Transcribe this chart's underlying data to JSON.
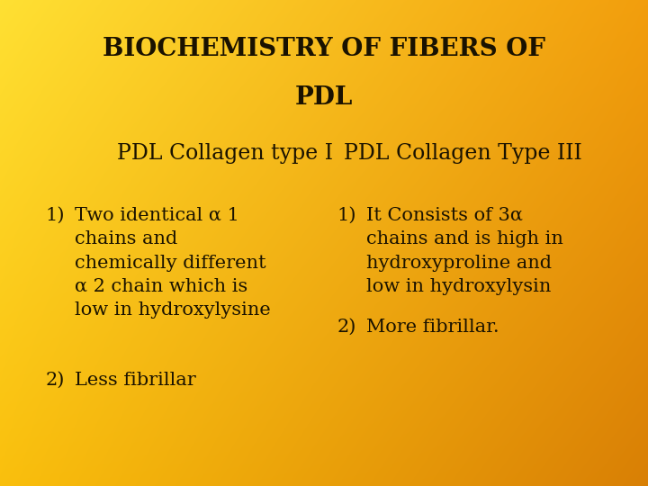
{
  "title_line1": "BIOCHEMISTRY OF FIBERS OF",
  "title_line2": "PDL",
  "col1_header": "PDL Collagen type I",
  "col2_header": "PDL Collagen Type III",
  "col1_item1_num": "1)",
  "col1_item1_text": "Two identical α 1\nchains and\nchemically different\nα 2 chain which is\nlow in hydroxylysine",
  "col1_item2_num": "2)",
  "col1_item2_text": "Less fibrillar",
  "col2_item1_num": "1)",
  "col2_item1_text": "It Consists of 3α\nchains and is high in\nhydroxyproline and\nlow in hydroxylysin",
  "col2_item2_num": "2)",
  "col2_item2_text": "More fibrillar.",
  "text_color": "#1a1200",
  "title_fontsize": 20,
  "header_fontsize": 17,
  "body_fontsize": 15,
  "fig_width": 7.2,
  "fig_height": 5.4,
  "dpi": 100
}
